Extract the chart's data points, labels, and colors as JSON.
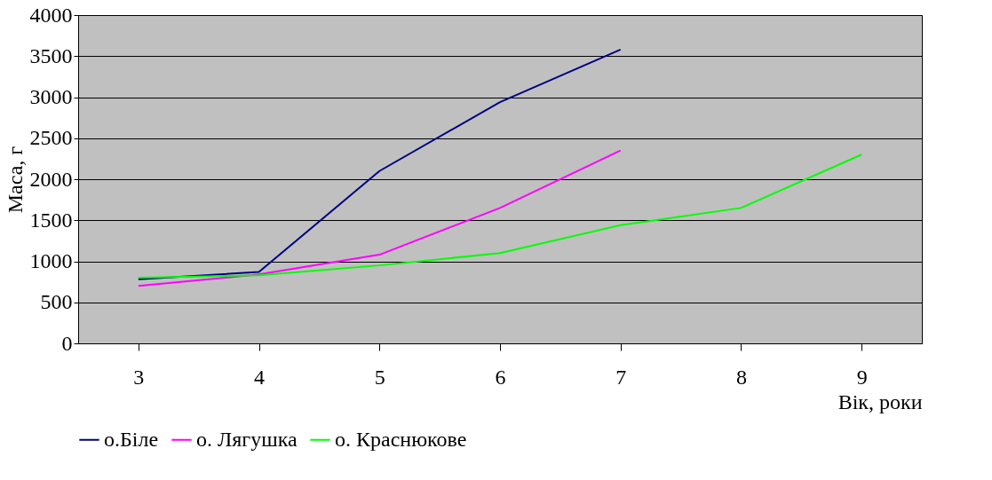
{
  "chart_data": {
    "type": "line",
    "categories": [
      "3",
      "4",
      "5",
      "6",
      "7",
      "8",
      "9"
    ],
    "xlabel": "Вік, роки",
    "ylabel": "Маса, г",
    "ylim": [
      0,
      4000
    ],
    "yticks": [
      0,
      500,
      1000,
      1500,
      2000,
      2500,
      3000,
      3500,
      4000
    ],
    "grid": "y",
    "legend": "bottom",
    "marker": "none",
    "line_style": "solid",
    "series": [
      {
        "name": "о.Біле",
        "color": "#000080",
        "values": [
          780,
          870,
          2100,
          2940,
          3580,
          null,
          null
        ]
      },
      {
        "name": "о. Лягушка",
        "color": "#ff00ff",
        "values": [
          700,
          840,
          1080,
          1650,
          2350,
          null,
          null
        ]
      },
      {
        "name": "о. Краснюкове",
        "color": "#00ff00",
        "values": [
          800,
          830,
          950,
          1100,
          1440,
          1650,
          2300
        ]
      }
    ]
  }
}
